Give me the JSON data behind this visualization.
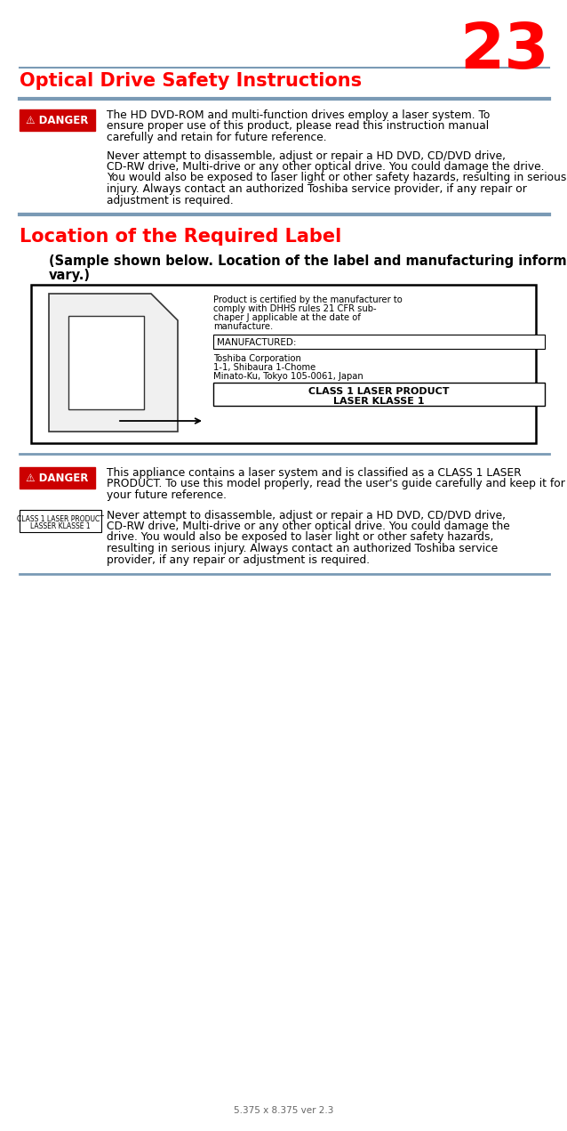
{
  "page_number": "23",
  "page_number_color": "#ff0000",
  "background_color": "#ffffff",
  "separator_color": "#7a9ab5",
  "section1_title": "Optical Drive Safety Instructions",
  "section1_title_color": "#ff0000",
  "section2_title": "Location of the Required Label",
  "section2_title_color": "#ff0000",
  "danger_bg": "#cc0000",
  "danger_text_color": "#ffffff",
  "danger_label": "⚠ DANGER",
  "body_color": "#000000",
  "para1_text": "The HD DVD-ROM and multi-function drives employ a laser system. To ensure proper use of this product, please read this instruction manual carefully and retain for future reference.",
  "para2_text": "Never attempt to disassemble, adjust or repair a HD DVD, CD/DVD drive, CD-RW drive, Multi-drive or any other optical drive. You could damage the drive. You would also be exposed to laser light or other safety hazards, resulting in serious injury. Always contact an authorized Toshiba service provider, if any repair or adjustment is required.",
  "sample_label_text_line1": "(Sample shown below. Location of the label and manufacturing information may",
  "sample_label_text_line2": "vary.)",
  "label_cert_line1": "Product is certified by the manufacturer to",
  "label_cert_line2": "comply with DHHS rules 21 CFR sub-",
  "label_cert_line3": "chaper J applicable at the date of",
  "label_cert_line4": "manufacture.",
  "label_manufactured": "MANUFACTURED:",
  "label_company_line1": "Toshiba Corporation",
  "label_company_line2": "1-1, Shibaura 1-Chome",
  "label_company_line3": "Minato-Ku, Tokyo 105-0061, Japan",
  "label_class_line1": "CLASS 1 LASER PRODUCT",
  "label_class_line2": "LASER KLASSE 1",
  "para3_text": "This appliance contains a laser system and is classified as a CLASS 1 LASER PRODUCT. To use this model properly, read the user's guide carefully and keep it for your future reference.",
  "para4_text": "Never attempt to disassemble, adjust or repair a HD DVD, CD/DVD drive, CD-RW drive, Multi-drive or any other optical drive. You could damage the drive. You would also be exposed to laser light or other safety hazards, resulting in serious injury. Always contact an authorized Toshiba service provider, if any repair or adjustment is required.",
  "small_label_line1": "CLASS 1 LASER PRODUCT",
  "small_label_line2": "LASSER KLASSE 1",
  "footer_text": "5.375 x 8.375 ver 2.3",
  "footer_color": "#666666"
}
